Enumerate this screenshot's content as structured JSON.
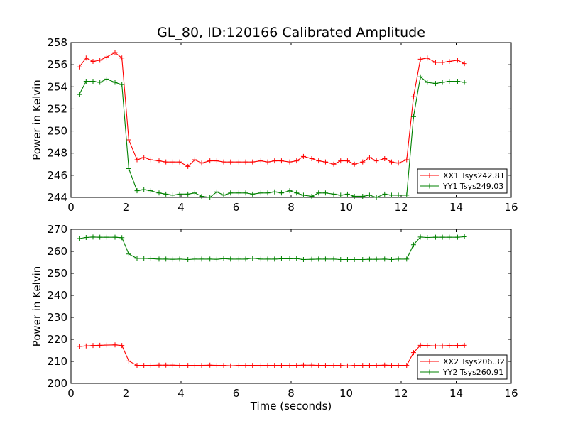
{
  "figure": {
    "title": "GL_80, ID:120166 Calibrated Amplitude",
    "xlabel": "Time (seconds)"
  },
  "chart_data": [
    {
      "type": "line",
      "title": "GL_80, ID:120166 Calibrated Amplitude",
      "xlabel": "",
      "ylabel": "Power in Kelvin",
      "xlim": [
        0,
        16
      ],
      "ylim": [
        244,
        258
      ],
      "xticks": [
        0,
        2,
        4,
        6,
        8,
        10,
        12,
        14,
        16
      ],
      "yticks": [
        244,
        246,
        248,
        250,
        252,
        254,
        256,
        258
      ],
      "grid": false,
      "legend": "lower-right",
      "x": [
        0.3,
        0.55,
        0.8,
        1.05,
        1.3,
        1.6,
        1.85,
        2.1,
        2.4,
        2.65,
        2.9,
        3.2,
        3.45,
        3.7,
        3.95,
        4.25,
        4.5,
        4.75,
        5.05,
        5.3,
        5.55,
        5.8,
        6.1,
        6.35,
        6.6,
        6.9,
        7.15,
        7.4,
        7.65,
        7.95,
        8.2,
        8.45,
        8.75,
        9.0,
        9.25,
        9.55,
        9.8,
        10.05,
        10.3,
        10.6,
        10.85,
        11.1,
        11.4,
        11.65,
        11.9,
        12.2,
        12.45,
        12.7,
        12.95,
        13.25,
        13.5,
        13.75,
        14.05,
        14.3
      ],
      "series": [
        {
          "name": "XX1 Tsys242.81",
          "color": "#ff0000",
          "values": [
            255.8,
            256.6,
            256.3,
            256.4,
            256.7,
            257.1,
            256.6,
            249.2,
            247.4,
            247.6,
            247.4,
            247.3,
            247.2,
            247.2,
            247.2,
            246.8,
            247.4,
            247.1,
            247.3,
            247.3,
            247.2,
            247.2,
            247.2,
            247.2,
            247.2,
            247.3,
            247.2,
            247.3,
            247.3,
            247.2,
            247.3,
            247.7,
            247.5,
            247.3,
            247.2,
            247.0,
            247.3,
            247.3,
            247.0,
            247.2,
            247.6,
            247.3,
            247.5,
            247.2,
            247.1,
            247.4,
            253.1,
            256.5,
            256.6,
            256.2,
            256.2,
            256.3,
            256.4,
            256.1
          ]
        },
        {
          "name": "YY1 Tsys249.03",
          "color": "#008000",
          "values": [
            253.3,
            254.5,
            254.5,
            254.4,
            254.7,
            254.4,
            254.2,
            246.6,
            244.6,
            244.7,
            244.6,
            244.4,
            244.3,
            244.2,
            244.3,
            244.3,
            244.4,
            244.1,
            244.0,
            244.5,
            244.2,
            244.4,
            244.4,
            244.4,
            244.3,
            244.4,
            244.4,
            244.5,
            244.4,
            244.6,
            244.4,
            244.2,
            244.1,
            244.4,
            244.4,
            244.3,
            244.2,
            244.3,
            244.1,
            244.1,
            244.2,
            244.0,
            244.3,
            244.2,
            244.2,
            244.2,
            251.3,
            254.9,
            254.4,
            254.3,
            254.4,
            254.5,
            254.5,
            254.4
          ]
        }
      ]
    },
    {
      "type": "line",
      "title": "",
      "xlabel": "Time (seconds)",
      "ylabel": "Power in Kelvin",
      "xlim": [
        0,
        16
      ],
      "ylim": [
        200,
        270
      ],
      "xticks": [
        0,
        2,
        4,
        6,
        8,
        10,
        12,
        14,
        16
      ],
      "yticks": [
        200,
        210,
        220,
        230,
        240,
        250,
        260,
        270
      ],
      "grid": false,
      "legend": "lower-right",
      "x": [
        0.3,
        0.55,
        0.8,
        1.05,
        1.3,
        1.6,
        1.85,
        2.1,
        2.4,
        2.65,
        2.9,
        3.2,
        3.45,
        3.7,
        3.95,
        4.25,
        4.5,
        4.75,
        5.05,
        5.3,
        5.55,
        5.8,
        6.1,
        6.35,
        6.6,
        6.9,
        7.15,
        7.4,
        7.65,
        7.95,
        8.2,
        8.45,
        8.75,
        9.0,
        9.25,
        9.55,
        9.8,
        10.05,
        10.3,
        10.6,
        10.85,
        11.1,
        11.4,
        11.65,
        11.9,
        12.2,
        12.45,
        12.7,
        12.95,
        13.25,
        13.5,
        13.75,
        14.05,
        14.3
      ],
      "series": [
        {
          "name": "XX2 Tsys206.32",
          "color": "#ff0000",
          "values": [
            216.8,
            217.0,
            217.2,
            217.3,
            217.4,
            217.5,
            217.2,
            210.2,
            208.2,
            208.2,
            208.2,
            208.3,
            208.3,
            208.3,
            208.2,
            208.2,
            208.2,
            208.2,
            208.3,
            208.2,
            208.2,
            208.0,
            208.2,
            208.2,
            208.2,
            208.2,
            208.2,
            208.2,
            208.2,
            208.2,
            208.2,
            208.3,
            208.3,
            208.2,
            208.2,
            208.2,
            208.2,
            208.0,
            208.2,
            208.2,
            208.2,
            208.2,
            208.3,
            208.2,
            208.2,
            208.2,
            214.0,
            217.3,
            217.2,
            217.0,
            217.1,
            217.2,
            217.2,
            217.3
          ]
        },
        {
          "name": "YY2 Tsys260.91",
          "color": "#008000",
          "values": [
            265.8,
            266.3,
            266.5,
            266.4,
            266.4,
            266.4,
            266.2,
            258.8,
            256.8,
            256.8,
            256.7,
            256.5,
            256.5,
            256.4,
            256.5,
            256.3,
            256.5,
            256.5,
            256.5,
            256.4,
            256.7,
            256.5,
            256.5,
            256.5,
            256.9,
            256.5,
            256.5,
            256.5,
            256.6,
            256.6,
            256.7,
            256.3,
            256.4,
            256.5,
            256.5,
            256.5,
            256.3,
            256.3,
            256.3,
            256.3,
            256.4,
            256.4,
            256.5,
            256.3,
            256.5,
            256.5,
            263.0,
            266.5,
            266.3,
            266.4,
            266.4,
            266.4,
            266.4,
            266.6
          ]
        }
      ]
    }
  ]
}
